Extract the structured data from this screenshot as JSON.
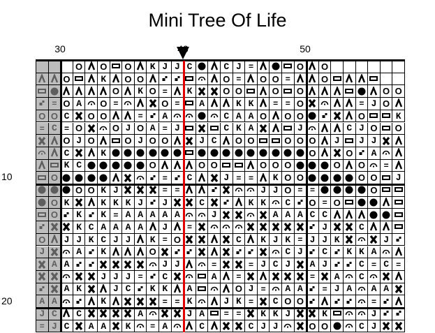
{
  "title": "Mini Tree Of Life",
  "column_labels": [
    "30",
    "40",
    "50"
  ],
  "row_labels": [
    "10",
    "20"
  ],
  "colors": {
    "grid": "#000000",
    "center_line": "#e00000",
    "done_cell_bg": "#bdbdbd",
    "done_cell_symbol": "#5e5e5e"
  },
  "symbol_key": {
    "O": "circle-outline-icon",
    "^": "caret-icon",
    "R": "rectangle-icon",
    "@": "filled-circle-icon",
    "X": "heavy-cross-icon",
    "n": "arc-dot-icon",
    "d": "diagonal-squares-icon",
    "=": "equals-icon",
    "K": "letter-k",
    "J": "letter-j",
    "C": "letter-c",
    "A": "letter-a"
  },
  "completed_columns": 2,
  "rows": [
    "   O^ORO^KJJC@^CJ=^@RO^O      ",
    "^^OR^K^OO^ddRn^O=^OO=^^OR^^R  ",
    "R@^^^^O^KO=^KXXOOR^ORO^^^R@^OO",
    "d=OAnO=n^XO=RA^^KK^==OXn^^=JO^",
    "OOCXOO^^=dAnn@nCAAO^OO@dX^ORRK",
    "=C=OXnOJOA=JRXRCKAX^RJn^^CJORO",
    "X^OJO^ROJOO^XJC^OORROOO^JRJJX^",
    "n^CX^K@@@@@@R@@@@@@@@@O^XOdAn^",
    "^RKC@@@@@O^^^OORR^OOO@@@O^On=^",
    "RO@@@@^Xnd=dC^XJ==^KOO@@@@OORJ",
    "@@@OOKJXXX==^^dXnnJJO==@@@@ORR",
    "@OKX^KKKJdJXXCXd^KKnCdO=OR@@^R",
    "ROdKdK=AAAAAnnJXXnXAAACC^^^@@R",
    "dXXKCAAAA^J^=XnnnXXXXXdJXXC^^R",
    "O^JJKCJJ^K=OXX^XC^KJK=JJKXnXJd",
    "JXnAdK^^^OXddX^XddXnCJdCdKKAn^",
    "XAAddXXXXnJJ^n=XX=JCJXAJddC=C=",
    "XXnXXJJJ=dCXnRA^=X^XXX=XAnCnX^",
    "dXAKX^JCdKK^ARn^OJ=nAAd=JAnAAX",
    "AAnd^K^XXX==Kn^JK=XCOOd^ddn=d^",
    "JC^CXXXXAnXXJAR==XKKJXXKRnnJdd",
    "=JCXAAXKn=An^C^XXCJJnXOO@nCJXX"
  ]
}
